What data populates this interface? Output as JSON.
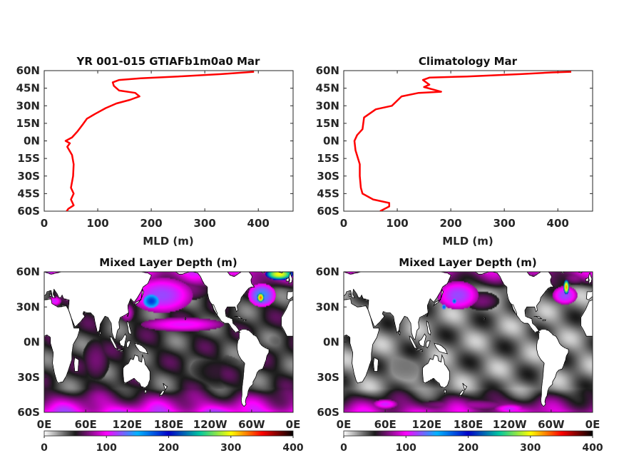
{
  "chart_data": [
    {
      "type": "line",
      "title": "YR 001-015 GTIAFb1m0a0 Mar",
      "xlabel": "MLD (m)",
      "ylabel": "",
      "xlim": [
        0,
        465
      ],
      "ylim": [
        -60,
        60
      ],
      "xticks": [
        "0",
        "100",
        "200",
        "300",
        "400"
      ],
      "yticks": [
        "60N",
        "45N",
        "30N",
        "15N",
        "0N",
        "15S",
        "30S",
        "45S",
        "60S"
      ],
      "line_color": "#ff0000",
      "grid": false,
      "series": [
        {
          "values": [
            {
              "mld": 392,
              "lat": 59
            },
            {
              "mld": 330,
              "lat": 57
            },
            {
              "mld": 250,
              "lat": 55
            },
            {
              "mld": 180,
              "lat": 53.5
            },
            {
              "mld": 140,
              "lat": 52
            },
            {
              "mld": 128,
              "lat": 50
            },
            {
              "mld": 130,
              "lat": 47
            },
            {
              "mld": 140,
              "lat": 43
            },
            {
              "mld": 170,
              "lat": 41
            },
            {
              "mld": 178,
              "lat": 38
            },
            {
              "mld": 160,
              "lat": 35
            },
            {
              "mld": 135,
              "lat": 32
            },
            {
              "mld": 115,
              "lat": 28
            },
            {
              "mld": 95,
              "lat": 23
            },
            {
              "mld": 80,
              "lat": 19
            },
            {
              "mld": 72,
              "lat": 14
            },
            {
              "mld": 62,
              "lat": 8
            },
            {
              "mld": 52,
              "lat": 3
            },
            {
              "mld": 40,
              "lat": 0
            },
            {
              "mld": 48,
              "lat": -2
            },
            {
              "mld": 43,
              "lat": -5
            },
            {
              "mld": 52,
              "lat": -12
            },
            {
              "mld": 55,
              "lat": -20
            },
            {
              "mld": 54,
              "lat": -30
            },
            {
              "mld": 50,
              "lat": -40
            },
            {
              "mld": 55,
              "lat": -45
            },
            {
              "mld": 50,
              "lat": -50
            },
            {
              "mld": 55,
              "lat": -55
            },
            {
              "mld": 45,
              "lat": -58
            },
            {
              "mld": 42,
              "lat": -60
            }
          ]
        }
      ]
    },
    {
      "type": "line",
      "title": "Climatology Mar",
      "xlabel": "MLD (m)",
      "ylabel": "",
      "xlim": [
        0,
        465
      ],
      "ylim": [
        -60,
        60
      ],
      "xticks": [
        "0",
        "100",
        "200",
        "300",
        "400"
      ],
      "yticks": [
        "60N",
        "45N",
        "30N",
        "15N",
        "0N",
        "15S",
        "30S",
        "45S",
        "60S"
      ],
      "line_color": "#ff0000",
      "grid": false,
      "series": [
        {
          "values": [
            {
              "mld": 425,
              "lat": 59
            },
            {
              "mld": 390,
              "lat": 58.5
            },
            {
              "mld": 330,
              "lat": 57
            },
            {
              "mld": 230,
              "lat": 55
            },
            {
              "mld": 160,
              "lat": 54
            },
            {
              "mld": 148,
              "lat": 52
            },
            {
              "mld": 160,
              "lat": 48
            },
            {
              "mld": 150,
              "lat": 46
            },
            {
              "mld": 182,
              "lat": 42
            },
            {
              "mld": 140,
              "lat": 41
            },
            {
              "mld": 108,
              "lat": 38
            },
            {
              "mld": 90,
              "lat": 30
            },
            {
              "mld": 60,
              "lat": 27
            },
            {
              "mld": 38,
              "lat": 20
            },
            {
              "mld": 35,
              "lat": 10
            },
            {
              "mld": 25,
              "lat": 5
            },
            {
              "mld": 20,
              "lat": 0
            },
            {
              "mld": 22,
              "lat": -8
            },
            {
              "mld": 30,
              "lat": -20
            },
            {
              "mld": 30,
              "lat": -30
            },
            {
              "mld": 32,
              "lat": -40
            },
            {
              "mld": 35,
              "lat": -45
            },
            {
              "mld": 55,
              "lat": -50
            },
            {
              "mld": 85,
              "lat": -53
            },
            {
              "mld": 85,
              "lat": -56
            },
            {
              "mld": 68,
              "lat": -60
            }
          ]
        }
      ]
    },
    {
      "type": "heatmap",
      "title": "Mixed Layer Depth (m)",
      "xticks": [
        "0E",
        "60E",
        "120E",
        "180E",
        "120W",
        "60W",
        "0E"
      ],
      "yticks": [
        "60N",
        "30N",
        "0N",
        "30S",
        "60S"
      ],
      "lon_range": [
        0,
        360
      ],
      "lat_range": [
        -60,
        60
      ],
      "colorbar": {
        "range": [
          0,
          400
        ],
        "ticks": [
          "0",
          "100",
          "200",
          "300",
          "400"
        ],
        "stops": [
          "#ffffff",
          "#1a1a1a",
          "#ff00ff",
          "#00b4ff",
          "#0000c8",
          "#00c8a0",
          "#ffff00",
          "#ff0000",
          "#000000"
        ]
      },
      "background_mld": 45,
      "features": [
        {
          "lon": 170,
          "lat": 40,
          "rx": 45,
          "ry": 15,
          "value": 120
        },
        {
          "lon": 155,
          "lat": 35,
          "rx": 12,
          "ry": 6,
          "value": 185
        },
        {
          "lon": 200,
          "lat": 15,
          "rx": 60,
          "ry": 6,
          "value": 105
        },
        {
          "lon": 200,
          "lat": 45,
          "rx": 40,
          "ry": 10,
          "value": 75
        },
        {
          "lon": 315,
          "lat": 40,
          "rx": 20,
          "ry": 10,
          "value": 140
        },
        {
          "lon": 313,
          "lat": 38,
          "rx": 5,
          "ry": 4,
          "value": 330
        },
        {
          "lon": 340,
          "lat": 58,
          "rx": 20,
          "ry": 5,
          "value": 300
        },
        {
          "lon": 15,
          "lat": 35,
          "rx": 10,
          "ry": 4,
          "value": 110
        },
        {
          "lon": 120,
          "lat": 25,
          "rx": 10,
          "ry": 8,
          "value": 90
        },
        {
          "lon": 75,
          "lat": -15,
          "rx": 20,
          "ry": 18,
          "value": 70
        },
        {
          "lon": 340,
          "lat": 0,
          "rx": 20,
          "ry": 10,
          "value": 35
        },
        {
          "lon": 250,
          "lat": -25,
          "rx": 40,
          "ry": 15,
          "value": 55
        }
      ]
    },
    {
      "type": "heatmap",
      "title": "Mixed Layer Depth (m)",
      "xticks": [
        "0E",
        "60E",
        "120E",
        "180E",
        "120W",
        "60W",
        "0E"
      ],
      "yticks": [
        "60N",
        "30N",
        "0N",
        "30S",
        "60S"
      ],
      "lon_range": [
        0,
        360
      ],
      "lat_range": [
        -60,
        60
      ],
      "colorbar": {
        "range": [
          0,
          400
        ],
        "ticks": [
          "0",
          "100",
          "200",
          "300",
          "400"
        ],
        "stops": [
          "#ffffff",
          "#1a1a1a",
          "#ff00ff",
          "#00b4ff",
          "#0000c8",
          "#00c8a0",
          "#ffff00",
          "#ff0000",
          "#000000"
        ]
      },
      "background_mld": 30,
      "features": [
        {
          "lon": 165,
          "lat": 40,
          "rx": 30,
          "ry": 12,
          "value": 120
        },
        {
          "lon": 160,
          "lat": 35,
          "rx": 3,
          "ry": 2,
          "value": 180
        },
        {
          "lon": 145,
          "lat": 30,
          "rx": 3,
          "ry": 2,
          "value": 180
        },
        {
          "lon": 200,
          "lat": 35,
          "rx": 25,
          "ry": 8,
          "value": 70
        },
        {
          "lon": 320,
          "lat": 40,
          "rx": 18,
          "ry": 8,
          "value": 120
        },
        {
          "lon": 322,
          "lat": 47,
          "rx": 4,
          "ry": 6,
          "value": 320
        },
        {
          "lon": 335,
          "lat": 55,
          "rx": 18,
          "ry": 6,
          "value": 75
        },
        {
          "lon": 60,
          "lat": -53,
          "rx": 18,
          "ry": 4,
          "value": 110
        },
        {
          "lon": 240,
          "lat": -57,
          "rx": 22,
          "ry": 4,
          "value": 110
        },
        {
          "lon": 180,
          "lat": -54,
          "rx": 80,
          "ry": 5,
          "value": 80
        },
        {
          "lon": 90,
          "lat": -20,
          "rx": 40,
          "ry": 15,
          "value": 30
        }
      ]
    }
  ]
}
